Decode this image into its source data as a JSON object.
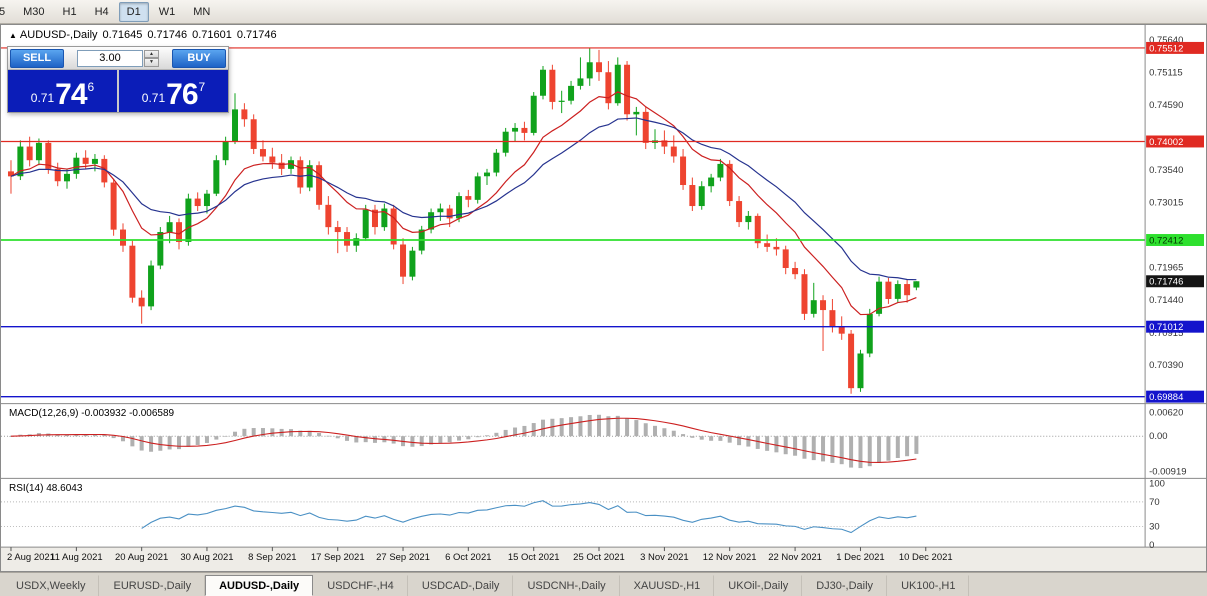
{
  "toolbar": {
    "timeframes": [
      "5",
      "M30",
      "H1",
      "H4",
      "D1",
      "W1",
      "MN"
    ],
    "active_timeframe": "D1"
  },
  "chart_header": {
    "collapse_icon": "▲",
    "symbol": "AUDUSD-,Daily",
    "open": "0.71645",
    "high": "0.71746",
    "low": "0.71601",
    "close": "0.71746"
  },
  "trade_panel": {
    "sell_label": "SELL",
    "buy_label": "BUY",
    "lot_value": "3.00",
    "spin_up_icon": "▲",
    "spin_down_icon": "▼",
    "sell_price": {
      "prefix": "0.71",
      "big": "74",
      "sup": "6"
    },
    "buy_price": {
      "prefix": "0.71",
      "big": "76",
      "sup": "7"
    }
  },
  "price_scale": {
    "plain_labels": [
      0.7564,
      0.75115,
      0.7459,
      0.7354,
      0.73015,
      0.71965,
      0.7144,
      0.70915,
      0.7039
    ],
    "level_labels": [
      {
        "text": "0.75512",
        "price": 0.75512,
        "bg": "#e02a22",
        "fg": "#ffffff",
        "line": true,
        "lw": 1.2
      },
      {
        "text": "0.74002",
        "price": 0.74002,
        "bg": "#e02a22",
        "fg": "#ffffff",
        "line": true,
        "lw": 1.2
      },
      {
        "text": "0.72412",
        "price": 0.72412,
        "bg": "#2ee02e",
        "fg": "#003300",
        "line": true,
        "lw": 1.8
      },
      {
        "text": "0.71746",
        "price": 0.71746,
        "bg": "#141414",
        "fg": "#ffffff",
        "line": false,
        "lw": 1
      },
      {
        "text": "0.71012",
        "price": 0.71012,
        "bg": "#1414cc",
        "fg": "#ffffff",
        "line": true,
        "lw": 1.4
      },
      {
        "text": "0.69884",
        "price": 0.69884,
        "bg": "#1414cc",
        "fg": "#ffffff",
        "line": true,
        "lw": 1.4
      }
    ]
  },
  "indicators": {
    "macd": {
      "label": "MACD(12,26,9) -0.003932 -0.006589",
      "params": {
        "fast": 12,
        "slow": 26,
        "signal": 9
      },
      "scale": [
        {
          "text": "0.00620",
          "v": 0.0062
        },
        {
          "text": "0.00",
          "v": 0
        },
        {
          "text": "-0.00919",
          "v": -0.00919
        }
      ]
    },
    "rsi": {
      "label": "RSI(14) 48.6043",
      "period": 14,
      "scale": [
        100,
        70,
        30,
        0
      ]
    }
  },
  "time_axis": [
    "2 Aug 2021",
    "11 Aug 2021",
    "20 Aug 2021",
    "30 Aug 2021",
    "8 Sep 2021",
    "17 Sep 2021",
    "27 Sep 2021",
    "6 Oct 2021",
    "15 Oct 2021",
    "25 Oct 2021",
    "3 Nov 2021",
    "12 Nov 2021",
    "22 Nov 2021",
    "1 Dec 2021",
    "10 Dec 2021"
  ],
  "tabs": {
    "items": [
      "USDX,Weekly",
      "EURUSD-,Daily",
      "AUDUSD-,Daily",
      "USDCHF-,H4",
      "USDCAD-,Daily",
      "USDCNH-,Daily",
      "XAUUSD-,H1",
      "UKOil-,Daily",
      "DJ30-,Daily",
      "UK100-,H1"
    ],
    "active": "AUDUSD-,Daily"
  },
  "colors": {
    "up": "#10a21c",
    "down": "#ee4430",
    "ma_fast": "#cc2020",
    "ma_slow": "#26338f",
    "macd_hist": "#b0b0b0",
    "macd_signal": "#cc2020",
    "rsi_line": "#4a90c4"
  },
  "chart_data": {
    "type": "candlestick",
    "symbol": "AUDUSD-",
    "timeframe": "Daily",
    "current_price": 0.71746,
    "price_range": [
      0.69771,
      0.75882
    ],
    "macd_range": [
      -0.0105,
      0.008
    ],
    "x_label_step_bars": 7,
    "levels": [
      0.75512,
      0.74002,
      0.72412,
      0.71012,
      0.69884
    ],
    "candles": [
      [
        0.7352,
        0.737,
        0.7316,
        0.7344
      ],
      [
        0.7344,
        0.7402,
        0.7338,
        0.7392
      ],
      [
        0.7392,
        0.7408,
        0.736,
        0.737
      ],
      [
        0.737,
        0.7405,
        0.7362,
        0.7398
      ],
      [
        0.7398,
        0.7402,
        0.7348,
        0.7356
      ],
      [
        0.7356,
        0.7366,
        0.7328,
        0.7336
      ],
      [
        0.7336,
        0.7355,
        0.7324,
        0.7348
      ],
      [
        0.7348,
        0.7382,
        0.734,
        0.7374
      ],
      [
        0.7374,
        0.7386,
        0.7356,
        0.7364
      ],
      [
        0.7364,
        0.738,
        0.7352,
        0.7372
      ],
      [
        0.7372,
        0.7378,
        0.7326,
        0.7334
      ],
      [
        0.7334,
        0.734,
        0.7248,
        0.7258
      ],
      [
        0.7258,
        0.7268,
        0.7222,
        0.7232
      ],
      [
        0.7232,
        0.724,
        0.714,
        0.7148
      ],
      [
        0.7148,
        0.716,
        0.7106,
        0.7134
      ],
      [
        0.7134,
        0.7208,
        0.7128,
        0.72
      ],
      [
        0.72,
        0.7262,
        0.7194,
        0.7254
      ],
      [
        0.7254,
        0.728,
        0.7236,
        0.727
      ],
      [
        0.727,
        0.7276,
        0.7226,
        0.7238
      ],
      [
        0.7238,
        0.7316,
        0.7232,
        0.7308
      ],
      [
        0.7308,
        0.7318,
        0.7288,
        0.7296
      ],
      [
        0.7296,
        0.7322,
        0.7284,
        0.7316
      ],
      [
        0.7316,
        0.7378,
        0.7312,
        0.737
      ],
      [
        0.737,
        0.7408,
        0.7362,
        0.74
      ],
      [
        0.74,
        0.7478,
        0.7396,
        0.7452
      ],
      [
        0.7452,
        0.7462,
        0.7424,
        0.7436
      ],
      [
        0.7436,
        0.7444,
        0.738,
        0.7388
      ],
      [
        0.7388,
        0.7402,
        0.7368,
        0.7376
      ],
      [
        0.7376,
        0.739,
        0.7356,
        0.7366
      ],
      [
        0.7366,
        0.738,
        0.7346,
        0.7356
      ],
      [
        0.7356,
        0.7376,
        0.7348,
        0.737
      ],
      [
        0.737,
        0.7376,
        0.7316,
        0.7326
      ],
      [
        0.7326,
        0.737,
        0.732,
        0.7362
      ],
      [
        0.7362,
        0.7368,
        0.729,
        0.7298
      ],
      [
        0.7298,
        0.7312,
        0.725,
        0.7262
      ],
      [
        0.7262,
        0.7272,
        0.722,
        0.7254
      ],
      [
        0.7254,
        0.7262,
        0.7222,
        0.7232
      ],
      [
        0.7232,
        0.7252,
        0.7222,
        0.7244
      ],
      [
        0.7244,
        0.7298,
        0.724,
        0.729
      ],
      [
        0.729,
        0.7298,
        0.725,
        0.7262
      ],
      [
        0.7262,
        0.73,
        0.7256,
        0.7292
      ],
      [
        0.7292,
        0.7298,
        0.7226,
        0.7234
      ],
      [
        0.7234,
        0.7244,
        0.717,
        0.7182
      ],
      [
        0.7182,
        0.723,
        0.7176,
        0.7224
      ],
      [
        0.7224,
        0.7264,
        0.7218,
        0.7258
      ],
      [
        0.7258,
        0.7292,
        0.7252,
        0.7286
      ],
      [
        0.7286,
        0.73,
        0.7272,
        0.7292
      ],
      [
        0.7292,
        0.7298,
        0.7262,
        0.7276
      ],
      [
        0.7276,
        0.7318,
        0.727,
        0.7312
      ],
      [
        0.7312,
        0.7322,
        0.7294,
        0.7306
      ],
      [
        0.7306,
        0.735,
        0.73,
        0.7344
      ],
      [
        0.7344,
        0.7356,
        0.733,
        0.735
      ],
      [
        0.735,
        0.7388,
        0.7344,
        0.7382
      ],
      [
        0.7382,
        0.7422,
        0.7376,
        0.7416
      ],
      [
        0.7416,
        0.743,
        0.74,
        0.7422
      ],
      [
        0.7422,
        0.7432,
        0.7402,
        0.7414
      ],
      [
        0.7414,
        0.748,
        0.741,
        0.7474
      ],
      [
        0.7474,
        0.7522,
        0.7468,
        0.7516
      ],
      [
        0.7516,
        0.7524,
        0.7452,
        0.7464
      ],
      [
        0.7464,
        0.7482,
        0.7446,
        0.7466
      ],
      [
        0.7466,
        0.7498,
        0.746,
        0.749
      ],
      [
        0.749,
        0.7536,
        0.7484,
        0.7502
      ],
      [
        0.7502,
        0.7551,
        0.749,
        0.7528
      ],
      [
        0.7528,
        0.7548,
        0.7498,
        0.7512
      ],
      [
        0.7512,
        0.753,
        0.7452,
        0.7462
      ],
      [
        0.7462,
        0.7536,
        0.7458,
        0.7524
      ],
      [
        0.7524,
        0.753,
        0.7434,
        0.7444
      ],
      [
        0.7444,
        0.7456,
        0.741,
        0.7448
      ],
      [
        0.7448,
        0.7456,
        0.7388,
        0.7398
      ],
      [
        0.7398,
        0.742,
        0.7388,
        0.7402
      ],
      [
        0.7402,
        0.7418,
        0.738,
        0.7392
      ],
      [
        0.7392,
        0.741,
        0.7366,
        0.7376
      ],
      [
        0.7376,
        0.7388,
        0.7322,
        0.733
      ],
      [
        0.733,
        0.7342,
        0.7288,
        0.7296
      ],
      [
        0.7296,
        0.7336,
        0.729,
        0.7328
      ],
      [
        0.7328,
        0.7348,
        0.7318,
        0.7342
      ],
      [
        0.7342,
        0.7372,
        0.7336,
        0.7364
      ],
      [
        0.7364,
        0.737,
        0.7296,
        0.7304
      ],
      [
        0.7304,
        0.7312,
        0.7262,
        0.727
      ],
      [
        0.727,
        0.7288,
        0.7258,
        0.728
      ],
      [
        0.728,
        0.7284,
        0.7228,
        0.7236
      ],
      [
        0.7236,
        0.725,
        0.7222,
        0.723
      ],
      [
        0.723,
        0.7244,
        0.7216,
        0.7226
      ],
      [
        0.7226,
        0.7232,
        0.7186,
        0.7196
      ],
      [
        0.7196,
        0.7206,
        0.7178,
        0.7186
      ],
      [
        0.7186,
        0.7194,
        0.7112,
        0.7122
      ],
      [
        0.7122,
        0.7172,
        0.7116,
        0.7144
      ],
      [
        0.7144,
        0.7152,
        0.7062,
        0.7128
      ],
      [
        0.7128,
        0.7146,
        0.7092,
        0.7102
      ],
      [
        0.7102,
        0.7118,
        0.708,
        0.709
      ],
      [
        0.709,
        0.7096,
        0.6993,
        0.7002
      ],
      [
        0.7002,
        0.7064,
        0.6996,
        0.7058
      ],
      [
        0.7058,
        0.713,
        0.7052,
        0.7122
      ],
      [
        0.7122,
        0.7182,
        0.7118,
        0.7174
      ],
      [
        0.7174,
        0.718,
        0.7138,
        0.7146
      ],
      [
        0.7146,
        0.7176,
        0.714,
        0.717
      ],
      [
        0.717,
        0.7178,
        0.714,
        0.7152
      ],
      [
        0.71645,
        0.71746,
        0.71601,
        0.71746
      ]
    ]
  }
}
